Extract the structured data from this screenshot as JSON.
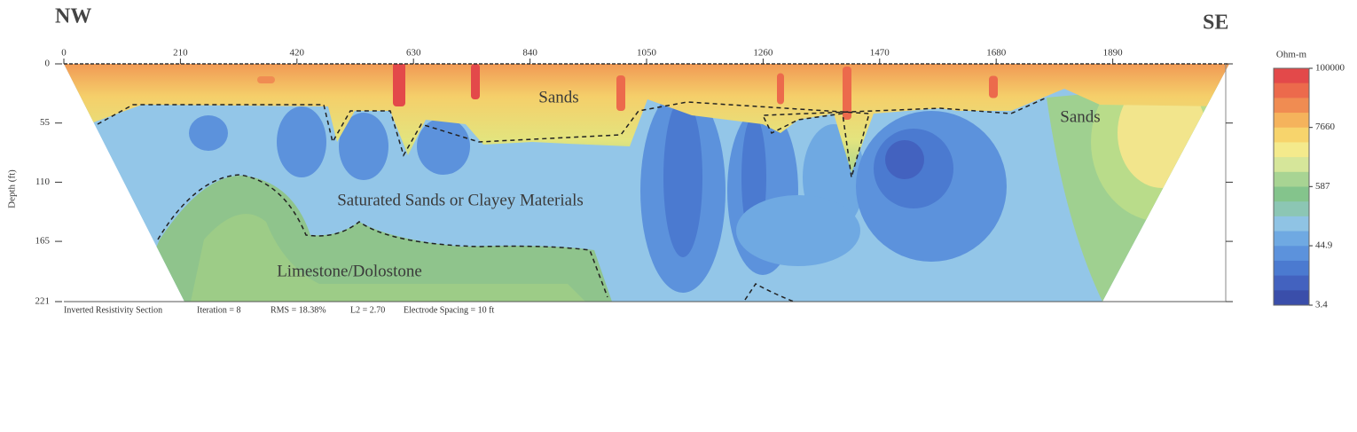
{
  "chart_data": {
    "type": "section",
    "direction_labels": [
      "NW",
      "SE"
    ],
    "ylabel": "Depth (ft)",
    "xlim": [
      0,
      2100
    ],
    "xticks": [
      0,
      210,
      420,
      630,
      840,
      1050,
      1260,
      1470,
      1680,
      1890
    ],
    "ylim": [
      0,
      221
    ],
    "yticks": [
      0,
      55,
      110,
      165,
      221
    ],
    "y_inverted": true,
    "annotations": [
      "Sands",
      "Sands",
      "Saturated Sands or Clayey Materials",
      "Limestone/Dolostone"
    ],
    "caption": [
      "Inverted Resistivity Section",
      "Iteration = 8",
      "RMS = 18.38%",
      "L2 = 2.70",
      "Electrode Spacing = 10 ft"
    ],
    "colorbar": {
      "title": "Ohm-m",
      "log": true,
      "lim": [
        3.4,
        100000
      ],
      "ticks": [
        100000,
        7660,
        587,
        44.9,
        3.4
      ],
      "colors": [
        "#e3494a",
        "#ec6a4c",
        "#f08c52",
        "#f5b35c",
        "#f7d46c",
        "#f4ea8c",
        "#d6e69a",
        "#a8d493",
        "#84c48c",
        "#8cc6b4",
        "#8fc3e4",
        "#6fa9e2",
        "#5c92dc",
        "#4b7ad0",
        "#4362bf",
        "#3a4eaa"
      ]
    }
  }
}
